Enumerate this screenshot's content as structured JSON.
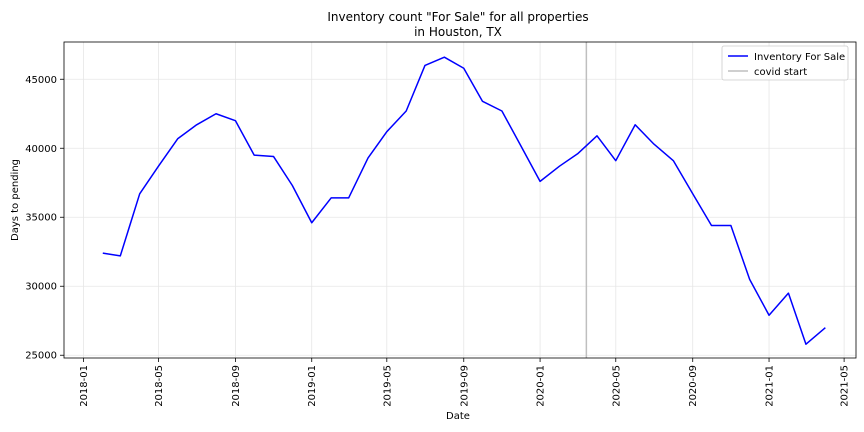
{
  "chart_data": {
    "type": "line",
    "title_lines": [
      "Inventory count \"For Sale\" for all properties",
      "in Houston, TX"
    ],
    "xlabel": "Date",
    "ylabel": "Days to pending",
    "xlim": [
      "2017-12-01",
      "2021-05-20"
    ],
    "ylim": [
      24800,
      47700
    ],
    "x_ticks": [
      "2018-01",
      "2018-05",
      "2018-09",
      "2019-01",
      "2019-05",
      "2019-09",
      "2020-01",
      "2020-05",
      "2020-09",
      "2021-01",
      "2021-05"
    ],
    "y_ticks": [
      25000,
      30000,
      35000,
      40000,
      45000
    ],
    "y_tick_labels": [
      "25000",
      "30000",
      "35000",
      "40000",
      "45000"
    ],
    "grid": true,
    "legend_position": "top-right",
    "series": [
      {
        "name": "Inventory For Sale",
        "color": "#0000ff",
        "x": [
          "2018-02-01",
          "2018-03-01",
          "2018-04-01",
          "2018-05-01",
          "2018-06-01",
          "2018-07-01",
          "2018-08-01",
          "2018-09-01",
          "2018-10-01",
          "2018-11-01",
          "2018-12-01",
          "2019-01-01",
          "2019-02-01",
          "2019-03-01",
          "2019-04-01",
          "2019-05-01",
          "2019-06-01",
          "2019-07-01",
          "2019-08-01",
          "2019-09-01",
          "2019-10-01",
          "2019-11-01",
          "2019-12-01",
          "2020-01-01",
          "2020-02-01",
          "2020-03-01",
          "2020-04-01",
          "2020-05-01",
          "2020-06-01",
          "2020-07-01",
          "2020-08-01",
          "2020-09-01",
          "2020-10-01",
          "2020-11-01",
          "2020-12-01",
          "2021-01-01",
          "2021-02-01",
          "2021-03-01",
          "2021-04-01"
        ],
        "y": [
          32400,
          32200,
          36700,
          38700,
          40700,
          41700,
          42500,
          42000,
          39500,
          39400,
          37300,
          34600,
          36400,
          36400,
          39300,
          41200,
          42700,
          46000,
          46600,
          45800,
          43400,
          42700,
          40200,
          37600,
          38700,
          39600,
          40900,
          39100,
          41700,
          40300,
          39100,
          36700,
          34400,
          34400,
          30500,
          27900,
          29500,
          25800,
          27000
        ]
      }
    ],
    "vlines": [
      {
        "name": "covid start",
        "x": "2020-03-15",
        "color": "#bfbfbf"
      }
    ]
  }
}
